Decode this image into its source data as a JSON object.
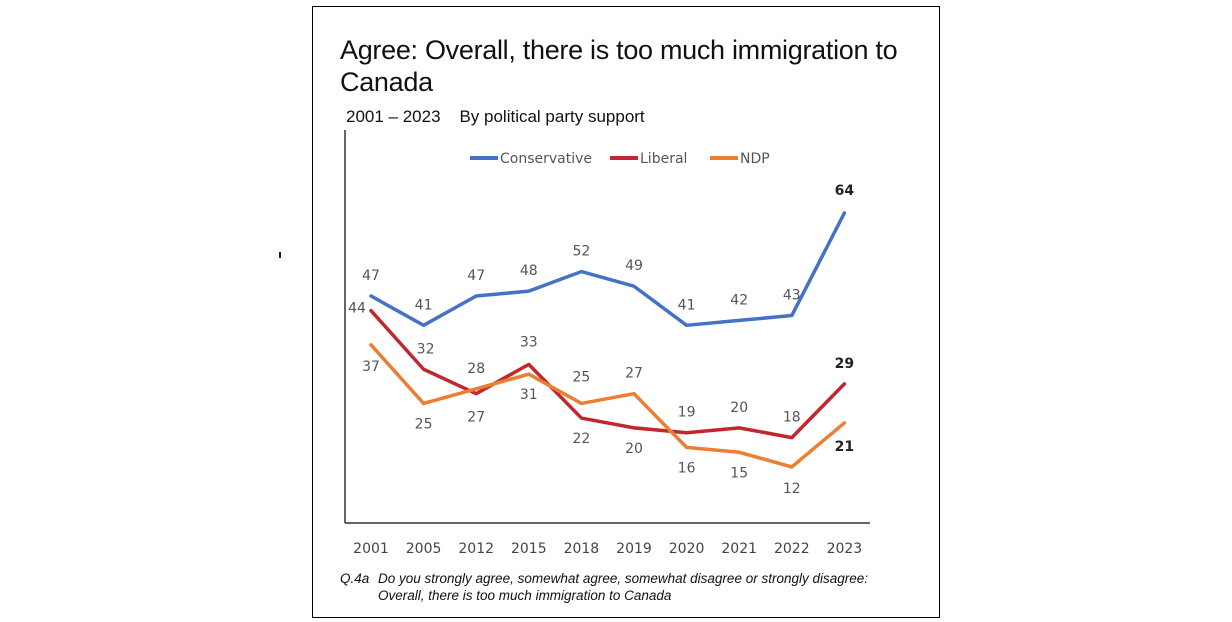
{
  "title": "Agree: Overall, there is too much immigration to Canada",
  "subtitle_range": "2001 – 2023",
  "subtitle_group": "By political party support",
  "footnote_q": "Q.4a",
  "footnote_line1": "Do you strongly agree, somewhat agree, somewhat disagree or strongly disagree:",
  "footnote_line2": "Overall, there is too much immigration to Canada",
  "chart_data": {
    "type": "line",
    "title": "Agree: Overall, there is too much immigration to Canada",
    "categories": [
      "2001",
      "2005",
      "2012",
      "2015",
      "2018",
      "2019",
      "2020",
      "2021",
      "2022",
      "2023"
    ],
    "series": [
      {
        "name": "Conservative",
        "color": "#4472c4",
        "values": [
          47,
          41,
          47,
          48,
          52,
          49,
          41,
          42,
          43,
          64
        ]
      },
      {
        "name": "Liberal",
        "color": "#c0282d",
        "values": [
          44,
          32,
          27,
          33,
          22,
          20,
          19,
          20,
          18,
          29
        ]
      },
      {
        "name": "NDP",
        "color": "#ed7d31",
        "values": [
          37,
          25,
          28,
          31,
          25,
          27,
          16,
          15,
          12,
          21
        ]
      }
    ],
    "ylim": [
      -10,
      78
    ],
    "legend": "top-center",
    "grid": false
  }
}
